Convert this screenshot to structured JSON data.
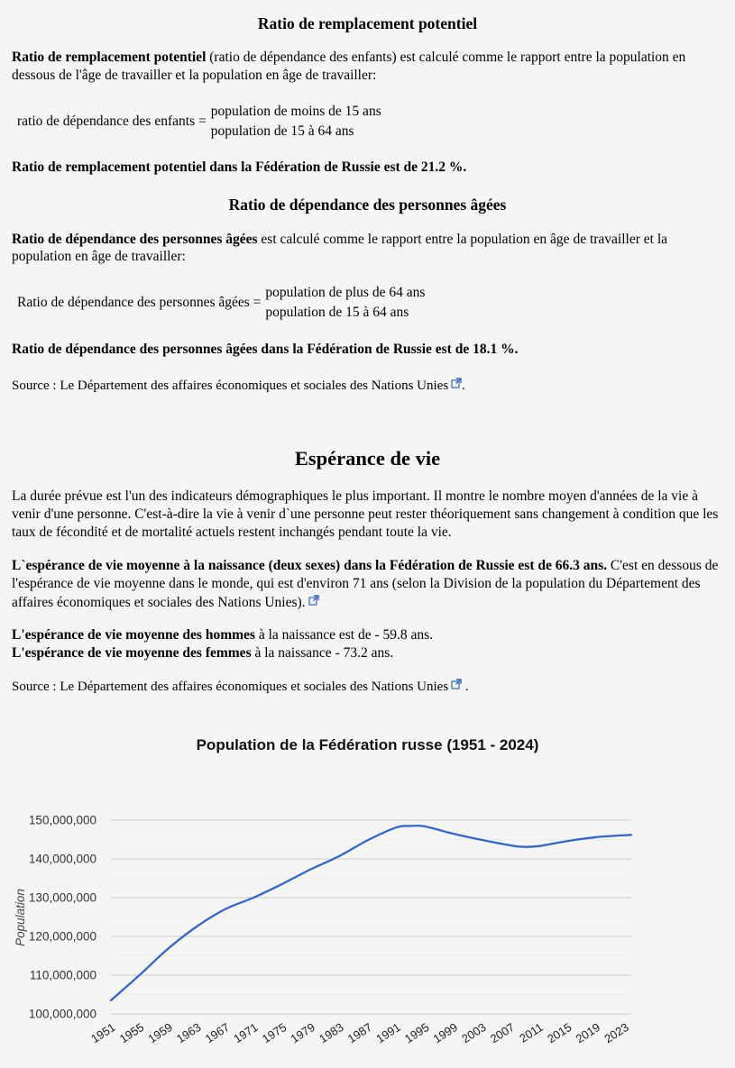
{
  "replacement": {
    "title": "Ratio de remplacement potentiel",
    "para_bold": "Ratio de remplacement potentiel",
    "para_rest": " (ratio de dépendance des enfants) est calculé comme le rapport entre la population en dessous de l'âge de travailler et la population en âge de travailler:",
    "formula_label": "ratio de dépendance des enfants =",
    "formula_numerator": "population de moins de 15 ans",
    "formula_denominator": "population de 15 à 64 ans",
    "result": "Ratio de remplacement potentiel dans la Fédération de Russie est de 21.2 %."
  },
  "elderly": {
    "title": "Ratio de dépendance des personnes âgées",
    "para_bold": "Ratio de dépendance des personnes âgées",
    "para_rest": " est calculé comme le rapport entre la population en âge de travailler et la population en âge de travailler:",
    "formula_label": "Ratio de dépendance des personnes âgées =",
    "formula_numerator": "population de plus de 64 ans",
    "formula_denominator": "population de 15 à 64 ans",
    "result": "Ratio de dépendance des personnes âgées dans la Fédération de Russie est de 18.1 %."
  },
  "source_1": {
    "prefix": "Source : ",
    "link_text": "Le Département des affaires économiques et sociales des Nations Unies",
    "suffix": "."
  },
  "life": {
    "title": "Espérance de vie",
    "para_intro": "La durée prévue est l'un des indicateurs démographiques le plus important. Il montre le nombre moyen d'années de la vie à venir d'une personne. C'est-à-dire la vie à venir d`une personne peut rester théoriquement sans changement à condition que les taux de fécondité et de mortalité actuels restent inchangés pendant toute la vie.",
    "stat_bold": "L`espérance de vie moyenne à la naissance (deux sexes) dans la Fédération de Russie est de 66.3 ans.",
    "stat_rest": " C'est en dessous de l'espérance de vie moyenne dans le monde, qui est d'environ 71 ans (selon la Division de la population du Département des affaires économiques et sociales des Nations Unies).",
    "men_bold": "L'espérance de vie moyenne des hommes",
    "men_rest": " à la naissance est de - 59.8 ans.",
    "women_bold": "L'espérance de vie moyenne des femmes",
    "women_rest": " à la naissance - 73.2 ans."
  },
  "source_2": {
    "prefix": "Source : ",
    "link_text": "Le Département des affaires économiques et sociales des Nations Unies",
    "suffix": " ."
  },
  "link_color": "#3366bb",
  "chart_data": {
    "type": "line",
    "title": "Population de la Fédération russe (1951 - 2024)",
    "ylabel": "Population",
    "xlabel": "",
    "legend": "none",
    "grid": true,
    "line_color": "#3366cc",
    "major_grid_color": "#cccccc",
    "minor_grid_color": "#ebebeb",
    "xlim": [
      1951,
      2024
    ],
    "ylim": [
      100000000,
      150000000
    ],
    "y_tick_values": [
      100000000,
      110000000,
      120000000,
      130000000,
      140000000,
      150000000
    ],
    "x_tick_labels": [
      "1951",
      "1955",
      "1959",
      "1963",
      "1967",
      "1971",
      "1975",
      "1979",
      "1983",
      "1987",
      "1991",
      "1995",
      "1999",
      "2003",
      "2007",
      "2011",
      "2015",
      "2019",
      "2023"
    ],
    "series": [
      {
        "name": "Population",
        "points": [
          [
            1951,
            103500000
          ],
          [
            1955,
            110000000
          ],
          [
            1959,
            116800000
          ],
          [
            1963,
            122500000
          ],
          [
            1967,
            127000000
          ],
          [
            1971,
            130000000
          ],
          [
            1975,
            133500000
          ],
          [
            1979,
            137300000
          ],
          [
            1983,
            140700000
          ],
          [
            1987,
            144800000
          ],
          [
            1991,
            148100000
          ],
          [
            1993,
            148500000
          ],
          [
            1995,
            148400000
          ],
          [
            1999,
            146500000
          ],
          [
            2003,
            144900000
          ],
          [
            2007,
            143500000
          ],
          [
            2009,
            143100000
          ],
          [
            2011,
            143300000
          ],
          [
            2015,
            144600000
          ],
          [
            2019,
            145600000
          ],
          [
            2023,
            146100000
          ],
          [
            2024,
            146200000
          ]
        ]
      }
    ]
  }
}
